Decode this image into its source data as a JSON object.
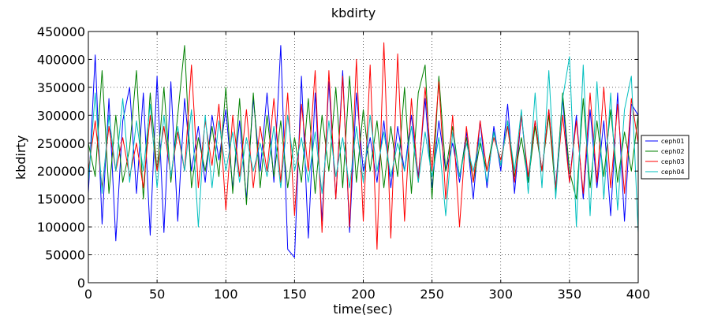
{
  "chart_data": {
    "type": "line",
    "title": "kbdirty",
    "xlabel": "time(sec)",
    "ylabel": "kbdirty",
    "xlim": [
      0,
      400
    ],
    "ylim": [
      0,
      450000
    ],
    "x_ticks": [
      0,
      50,
      100,
      150,
      200,
      250,
      300,
      350,
      400
    ],
    "y_ticks": [
      0,
      50000,
      100000,
      150000,
      200000,
      250000,
      300000,
      350000,
      400000,
      450000
    ],
    "x_tick_labels": [
      "0",
      "50",
      "100",
      "150",
      "200",
      "250",
      "300",
      "350",
      "400"
    ],
    "y_tick_labels": [
      "0",
      "50000",
      "100000",
      "150000",
      "200000",
      "250000",
      "300000",
      "350000",
      "400000",
      "450000"
    ],
    "grid": true,
    "legend_position": "right",
    "series": [
      {
        "name": "ceph01",
        "color": "#0000ff",
        "x": [
          0,
          5,
          10,
          15,
          20,
          25,
          30,
          35,
          40,
          45,
          50,
          55,
          60,
          65,
          70,
          75,
          80,
          85,
          90,
          95,
          100,
          105,
          110,
          115,
          120,
          125,
          130,
          135,
          140,
          145,
          150,
          155,
          160,
          165,
          170,
          175,
          180,
          185,
          190,
          195,
          200,
          205,
          210,
          215,
          220,
          225,
          230,
          235,
          240,
          245,
          250,
          255,
          260,
          265,
          270,
          275,
          280,
          285,
          290,
          295,
          300,
          305,
          310,
          315,
          320,
          325,
          330,
          335,
          340,
          345,
          350,
          355,
          360,
          365,
          370,
          375,
          380,
          385,
          390,
          395,
          400
        ],
        "values": [
          160000,
          408000,
          105000,
          330000,
          75000,
          290000,
          350000,
          160000,
          340000,
          85000,
          370000,
          90000,
          360000,
          110000,
          330000,
          200000,
          280000,
          180000,
          300000,
          220000,
          310000,
          170000,
          290000,
          150000,
          330000,
          200000,
          340000,
          180000,
          425000,
          60000,
          45000,
          370000,
          80000,
          340000,
          110000,
          360000,
          150000,
          380000,
          90000,
          340000,
          200000,
          260000,
          180000,
          290000,
          170000,
          280000,
          200000,
          300000,
          190000,
          330000,
          170000,
          290000,
          200000,
          250000,
          180000,
          270000,
          150000,
          290000,
          170000,
          280000,
          200000,
          320000,
          160000,
          300000,
          180000,
          290000,
          200000,
          310000,
          170000,
          330000,
          180000,
          300000,
          150000,
          310000,
          170000,
          290000,
          120000,
          340000,
          110000,
          320000,
          300000
        ]
      },
      {
        "name": "ceph02",
        "color": "#008000",
        "x": [
          0,
          5,
          10,
          15,
          20,
          25,
          30,
          35,
          40,
          45,
          50,
          55,
          60,
          65,
          70,
          75,
          80,
          85,
          90,
          95,
          100,
          105,
          110,
          115,
          120,
          125,
          130,
          135,
          140,
          145,
          150,
          155,
          160,
          165,
          170,
          175,
          180,
          185,
          190,
          195,
          200,
          205,
          210,
          215,
          220,
          225,
          230,
          235,
          240,
          245,
          250,
          255,
          260,
          265,
          270,
          275,
          280,
          285,
          290,
          295,
          300,
          305,
          310,
          315,
          320,
          325,
          330,
          335,
          340,
          345,
          350,
          355,
          360,
          365,
          370,
          375,
          380,
          385,
          390,
          395,
          400
        ],
        "values": [
          250000,
          190000,
          380000,
          160000,
          300000,
          180000,
          240000,
          380000,
          150000,
          340000,
          200000,
          350000,
          180000,
          300000,
          425000,
          170000,
          260000,
          200000,
          280000,
          190000,
          350000,
          160000,
          330000,
          140000,
          340000,
          170000,
          300000,
          190000,
          290000,
          170000,
          260000,
          180000,
          330000,
          160000,
          300000,
          200000,
          350000,
          170000,
          370000,
          180000,
          310000,
          200000,
          290000,
          170000,
          280000,
          190000,
          350000,
          160000,
          340000,
          390000,
          150000,
          370000,
          200000,
          280000,
          190000,
          260000,
          180000,
          250000,
          200000,
          270000,
          210000,
          290000,
          190000,
          260000,
          180000,
          280000,
          200000,
          300000,
          160000,
          340000,
          200000,
          150000,
          330000,
          170000,
          290000,
          190000,
          310000,
          180000,
          270000,
          200000,
          300000
        ]
      },
      {
        "name": "ceph03",
        "color": "#ff0000",
        "x": [
          0,
          5,
          10,
          15,
          20,
          25,
          30,
          35,
          40,
          45,
          50,
          55,
          60,
          65,
          70,
          75,
          80,
          85,
          90,
          95,
          100,
          105,
          110,
          115,
          120,
          125,
          130,
          135,
          140,
          145,
          150,
          155,
          160,
          165,
          170,
          175,
          180,
          185,
          190,
          195,
          200,
          205,
          210,
          215,
          220,
          225,
          230,
          235,
          240,
          245,
          250,
          255,
          260,
          265,
          270,
          275,
          280,
          285,
          290,
          295,
          300,
          305,
          310,
          315,
          320,
          325,
          330,
          335,
          340,
          345,
          350,
          355,
          360,
          365,
          370,
          375,
          380,
          385,
          390,
          395,
          400
        ],
        "values": [
          200000,
          290000,
          170000,
          280000,
          200000,
          260000,
          190000,
          250000,
          170000,
          300000,
          200000,
          280000,
          190000,
          270000,
          200000,
          390000,
          170000,
          290000,
          210000,
          320000,
          130000,
          300000,
          190000,
          310000,
          170000,
          280000,
          200000,
          330000,
          180000,
          340000,
          120000,
          320000,
          200000,
          380000,
          90000,
          380000,
          150000,
          370000,
          100000,
          400000,
          110000,
          390000,
          60000,
          430000,
          80000,
          410000,
          110000,
          330000,
          180000,
          350000,
          200000,
          360000,
          150000,
          300000,
          100000,
          280000,
          180000,
          290000,
          200000,
          260000,
          220000,
          280000,
          180000,
          300000,
          190000,
          290000,
          200000,
          310000,
          170000,
          300000,
          180000,
          290000,
          160000,
          340000,
          180000,
          350000,
          170000,
          320000,
          160000,
          330000,
          250000
        ]
      },
      {
        "name": "ceph04",
        "color": "#00bfbf",
        "x": [
          0,
          5,
          10,
          15,
          20,
          25,
          30,
          35,
          40,
          45,
          50,
          55,
          60,
          65,
          70,
          75,
          80,
          85,
          90,
          95,
          100,
          105,
          110,
          115,
          120,
          125,
          130,
          135,
          140,
          145,
          150,
          155,
          160,
          165,
          170,
          175,
          180,
          185,
          190,
          195,
          200,
          205,
          210,
          215,
          220,
          225,
          230,
          235,
          240,
          245,
          250,
          255,
          260,
          265,
          270,
          275,
          280,
          285,
          290,
          295,
          300,
          305,
          310,
          315,
          320,
          325,
          330,
          335,
          340,
          345,
          350,
          355,
          360,
          365,
          370,
          375,
          380,
          385,
          390,
          395,
          400
        ],
        "values": [
          180000,
          340000,
          160000,
          300000,
          200000,
          330000,
          180000,
          290000,
          200000,
          320000,
          170000,
          300000,
          190000,
          280000,
          200000,
          310000,
          100000,
          300000,
          170000,
          290000,
          200000,
          270000,
          180000,
          260000,
          200000,
          250000,
          190000,
          280000,
          170000,
          300000,
          200000,
          260000,
          180000,
          270000,
          160000,
          290000,
          190000,
          260000,
          170000,
          280000,
          180000,
          300000,
          200000,
          270000,
          190000,
          250000,
          200000,
          280000,
          180000,
          270000,
          190000,
          260000,
          120000,
          270000,
          190000,
          250000,
          200000,
          260000,
          180000,
          270000,
          210000,
          290000,
          200000,
          310000,
          160000,
          340000,
          170000,
          380000,
          150000,
          330000,
          405000,
          100000,
          390000,
          120000,
          360000,
          150000,
          340000,
          130000,
          310000,
          370000,
          90000
        ]
      }
    ]
  }
}
